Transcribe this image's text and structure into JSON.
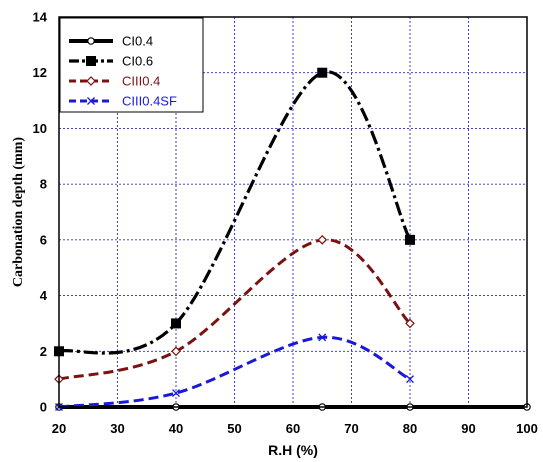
{
  "chart_data": {
    "type": "line",
    "title": "",
    "xlabel": "R.H (%)",
    "ylabel": "Carbonation depth (mm)",
    "xlim": [
      20,
      100
    ],
    "ylim": [
      0,
      14
    ],
    "xticks": [
      "20",
      "30",
      "40",
      "50",
      "60",
      "70",
      "80",
      "90",
      "100"
    ],
    "yticks": [
      "0",
      "2",
      "4",
      "6",
      "8",
      "10",
      "12",
      "14"
    ],
    "grid": true,
    "legend_position": "top-left",
    "series": [
      {
        "name": "CI0.4",
        "x": [
          20,
          40,
          65,
          80,
          100
        ],
        "y": [
          0,
          0,
          0,
          0,
          0
        ],
        "color": "#000000",
        "dash": "solid",
        "marker": "circle-open"
      },
      {
        "name": "CI0.6",
        "x": [
          20,
          40,
          65,
          80
        ],
        "y": [
          2,
          3,
          12,
          6
        ],
        "color": "#000000",
        "dash": "dash-dot",
        "marker": "square-filled"
      },
      {
        "name": "CIII0.4",
        "x": [
          20,
          40,
          65,
          80
        ],
        "y": [
          1,
          2,
          6,
          3
        ],
        "color": "#7a1212",
        "dash": "dash",
        "marker": "diamond-open"
      },
      {
        "name": "CIII0.4SF",
        "x": [
          20,
          40,
          65,
          80
        ],
        "y": [
          0,
          0.5,
          2.5,
          1
        ],
        "color": "#1a1ad6",
        "dash": "dash",
        "marker": "x"
      }
    ]
  }
}
